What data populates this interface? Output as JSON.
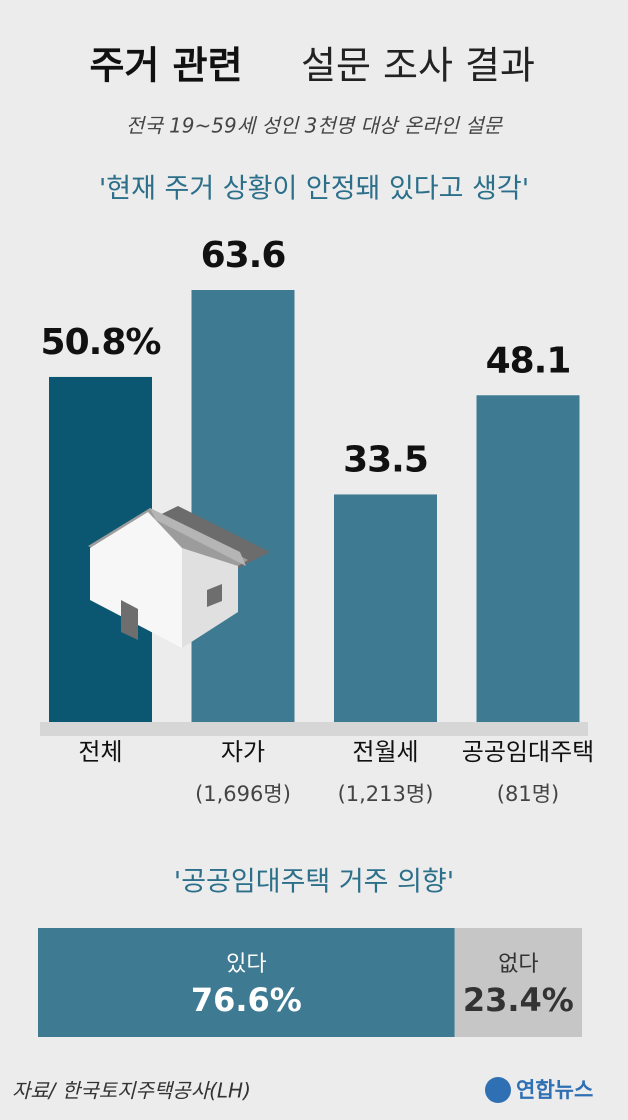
{
  "header": {
    "title_bold": "주거 관련",
    "title_light": "설문 조사 결과",
    "subtitle": "전국 19~59세 성인 3천명 대상 온라인 설문"
  },
  "chart_data": [
    {
      "type": "bar",
      "title": "'현재 주거 상황이 안정돼 있다고 생각'",
      "categories": [
        "전체",
        "자가",
        "전월세",
        "공공임대주택"
      ],
      "category_notes": [
        null,
        "(1,696명)",
        "(1,213명)",
        "(81명)"
      ],
      "values": [
        50.8,
        63.6,
        33.5,
        48.1
      ],
      "value_labels": [
        "50.8%",
        "63.6",
        "33.5",
        "48.1"
      ],
      "colors": [
        "#0b5670",
        "#3f7a93",
        "#3f7a93",
        "#3f7a93"
      ]
    },
    {
      "type": "stacked-hbar",
      "title": "'공공임대주택 거주 의향'",
      "categories": [
        "있다",
        "없다"
      ],
      "values": [
        76.6,
        23.4
      ],
      "value_labels": [
        "76.6%",
        "23.4%"
      ],
      "colors": [
        "#3f7a93",
        "#c6c6c6"
      ]
    }
  ],
  "footer": {
    "source": "자료/ 한국토지주택공사(LH)",
    "logo": "연합뉴스"
  }
}
